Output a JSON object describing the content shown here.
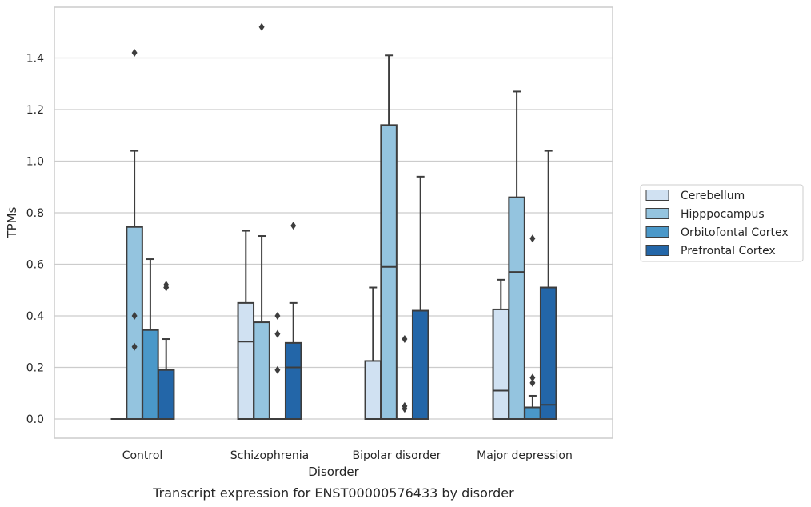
{
  "chart_data": {
    "type": "boxplot",
    "caption": "Transcript expression for ENST00000576433 by disorder",
    "xlabel": "Disorder",
    "ylabel": "TPMs",
    "ylim": [
      -0.07,
      1.6
    ],
    "yticks": [
      0.0,
      0.2,
      0.4,
      0.6,
      0.8,
      1.0,
      1.2,
      1.4
    ],
    "ytick_labels": [
      "0.0",
      "0.2",
      "0.4",
      "0.6",
      "0.8",
      "1.0",
      "1.2",
      "1.4"
    ],
    "grid": "horizontal",
    "legend_position": "right",
    "categories": [
      "Control",
      "Schizophrenia",
      "Bipolar disorder",
      "Major depression"
    ],
    "series": [
      {
        "name": "Cerebellum",
        "color": "#d0e1f2",
        "boxes": [
          {
            "q1": 0.0,
            "median": 0.0,
            "q3": 0.0,
            "whisker_low": 0.0,
            "whisker_high": 0.0,
            "outliers": []
          },
          {
            "q1": 0.0,
            "median": 0.3,
            "q3": 0.45,
            "whisker_low": 0.0,
            "whisker_high": 0.73,
            "outliers": []
          },
          {
            "q1": 0.0,
            "median": 0.0,
            "q3": 0.225,
            "whisker_low": 0.0,
            "whisker_high": 0.51,
            "outliers": []
          },
          {
            "q1": 0.0,
            "median": 0.11,
            "q3": 0.425,
            "whisker_low": 0.0,
            "whisker_high": 0.54,
            "outliers": []
          }
        ]
      },
      {
        "name": "Hipppocampus",
        "color": "#94c4df",
        "boxes": [
          {
            "q1": 0.0,
            "median": 0.0,
            "q3": 0.745,
            "whisker_low": 0.0,
            "whisker_high": 1.04,
            "outliers": [
              1.42,
              0.4,
              0.28
            ]
          },
          {
            "q1": 0.0,
            "median": 0.0,
            "q3": 0.375,
            "whisker_low": 0.0,
            "whisker_high": 0.71,
            "outliers": [
              1.52
            ]
          },
          {
            "q1": 0.0,
            "median": 0.59,
            "q3": 1.14,
            "whisker_low": 0.0,
            "whisker_high": 1.41,
            "outliers": []
          },
          {
            "q1": 0.0,
            "median": 0.57,
            "q3": 0.86,
            "whisker_low": 0.0,
            "whisker_high": 1.27,
            "outliers": []
          }
        ]
      },
      {
        "name": "Orbitofontal Cortex",
        "color": "#4a98c9",
        "boxes": [
          {
            "q1": 0.0,
            "median": 0.0,
            "q3": 0.345,
            "whisker_low": 0.0,
            "whisker_high": 0.62,
            "outliers": []
          },
          {
            "q1": 0.0,
            "median": 0.0,
            "q3": 0.0,
            "whisker_low": 0.0,
            "whisker_high": 0.0,
            "outliers": [
              0.4,
              0.33,
              0.19
            ]
          },
          {
            "q1": 0.0,
            "median": 0.0,
            "q3": 0.0,
            "whisker_low": 0.0,
            "whisker_high": 0.0,
            "outliers": [
              0.31,
              0.05,
              0.04
            ]
          },
          {
            "q1": 0.0,
            "median": 0.0,
            "q3": 0.045,
            "whisker_low": 0.0,
            "whisker_high": 0.09,
            "outliers": [
              0.7,
              0.16,
              0.14
            ]
          }
        ]
      },
      {
        "name": "Prefrontal Cortex",
        "color": "#2366a8",
        "boxes": [
          {
            "q1": 0.0,
            "median": 0.0,
            "q3": 0.19,
            "whisker_low": 0.0,
            "whisker_high": 0.31,
            "outliers": [
              0.52,
              0.51
            ]
          },
          {
            "q1": 0.0,
            "median": 0.2,
            "q3": 0.295,
            "whisker_low": 0.0,
            "whisker_high": 0.45,
            "outliers": [
              0.75
            ]
          },
          {
            "q1": 0.0,
            "median": 0.0,
            "q3": 0.42,
            "whisker_low": 0.0,
            "whisker_high": 0.94,
            "outliers": []
          },
          {
            "q1": 0.0,
            "median": 0.055,
            "q3": 0.51,
            "whisker_low": 0.0,
            "whisker_high": 1.04,
            "outliers": []
          }
        ]
      }
    ]
  }
}
